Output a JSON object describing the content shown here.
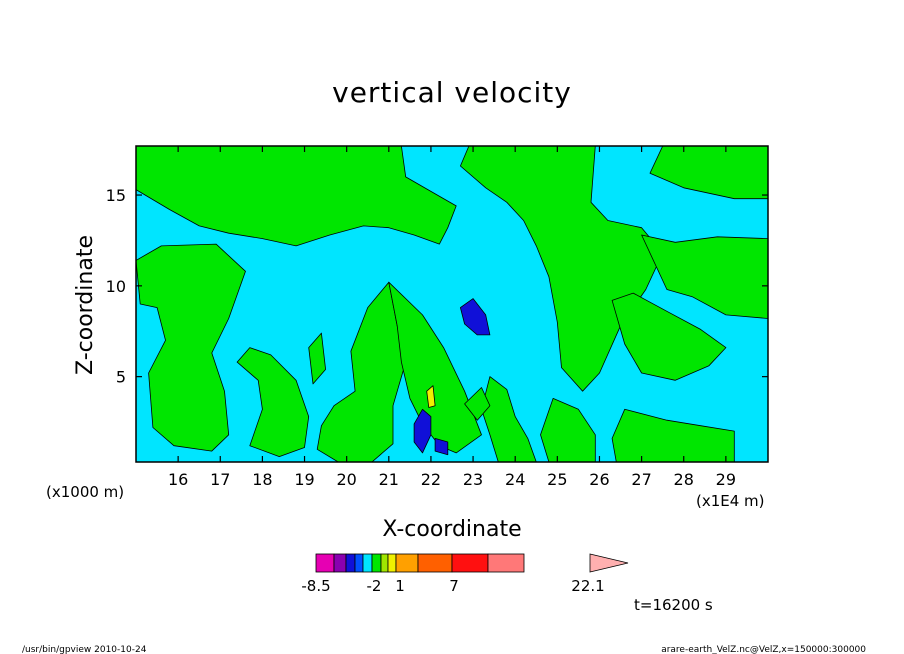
{
  "chart_data": {
    "type": "heatmap",
    "title": "vertical velocity",
    "xlabel": "X-coordinate",
    "ylabel": "Z-coordinate",
    "x_scale_note": "(x1E4 m)",
    "y_scale_note": "(x1000 m)",
    "xlim": [
      15.0,
      30.0
    ],
    "ylim": [
      0.3,
      17.7
    ],
    "x_ticks": [
      "16",
      "17",
      "18",
      "19",
      "20",
      "21",
      "22",
      "23",
      "24",
      "25",
      "26",
      "27",
      "28",
      "29"
    ],
    "y_ticks": [
      "5",
      "10",
      "15"
    ],
    "x_tick_values": [
      16,
      17,
      18,
      19,
      20,
      21,
      22,
      23,
      24,
      25,
      26,
      27,
      28,
      29
    ],
    "y_tick_values": [
      5,
      10,
      15
    ],
    "background_color": "#00e5ff",
    "contour_levels": [
      {
        "min": -8.5,
        "color": "#e600b3"
      },
      {
        "min": -7,
        "color": "#8a00b0"
      },
      {
        "min": -5.5,
        "color": "#1010d8"
      },
      {
        "min": -4,
        "color": "#0050ff"
      },
      {
        "min": -2,
        "color": "#00e5ff"
      },
      {
        "min": 1,
        "color": "#00e600"
      },
      {
        "min": 2,
        "color": "#a0e600"
      },
      {
        "min": 3,
        "color": "#f0f000"
      },
      {
        "min": 4,
        "color": "#ffa000"
      },
      {
        "min": 7,
        "color": "#ff6000"
      },
      {
        "min": 10,
        "color": "#ff1010"
      },
      {
        "min": 14,
        "color": "#ff7878"
      },
      {
        "min": 22.1,
        "color": "#ffb0b0"
      }
    ],
    "regions": [
      {
        "level": "positive",
        "color": "#00e600",
        "points": [
          [
            15,
            15.3
          ],
          [
            15.8,
            14.2
          ],
          [
            16.5,
            13.3
          ],
          [
            17.2,
            12.9
          ],
          [
            18,
            12.6
          ],
          [
            18.8,
            12.2
          ],
          [
            19.6,
            12.8
          ],
          [
            20.4,
            13.3
          ],
          [
            21,
            13.2
          ],
          [
            21.6,
            12.8
          ],
          [
            22.2,
            12.3
          ],
          [
            22.4,
            13.2
          ],
          [
            22.6,
            14.4
          ],
          [
            22.0,
            15.2
          ],
          [
            21.4,
            16.0
          ],
          [
            21.3,
            17.7
          ],
          [
            15,
            17.7
          ]
        ]
      },
      {
        "level": "positive",
        "color": "#00e600",
        "points": [
          [
            22.9,
            17.7
          ],
          [
            22.7,
            16.6
          ],
          [
            23.3,
            15.4
          ],
          [
            23.8,
            14.6
          ],
          [
            24.2,
            13.6
          ],
          [
            24.5,
            12.2
          ],
          [
            24.8,
            10.5
          ],
          [
            25.0,
            8.0
          ],
          [
            25.1,
            5.5
          ],
          [
            25.6,
            4.2
          ],
          [
            26.0,
            5.2
          ],
          [
            26.5,
            7.8
          ],
          [
            27.1,
            9.8
          ],
          [
            27.5,
            11.8
          ],
          [
            27.0,
            13.2
          ],
          [
            26.2,
            13.6
          ],
          [
            25.8,
            14.6
          ],
          [
            25.9,
            17.7
          ]
        ]
      },
      {
        "level": "positive",
        "color": "#00e600",
        "points": [
          [
            27.5,
            17.7
          ],
          [
            27.2,
            16.2
          ],
          [
            28.0,
            15.4
          ],
          [
            29.2,
            14.8
          ],
          [
            30,
            14.8
          ],
          [
            30,
            17.7
          ]
        ]
      },
      {
        "level": "positive",
        "color": "#00e600",
        "points": [
          [
            27.0,
            12.8
          ],
          [
            27.8,
            12.4
          ],
          [
            28.8,
            12.7
          ],
          [
            30,
            12.6
          ],
          [
            30,
            8.2
          ],
          [
            29.0,
            8.4
          ],
          [
            28.2,
            9.4
          ],
          [
            27.6,
            9.8
          ]
        ]
      },
      {
        "level": "positive",
        "color": "#00e600",
        "points": [
          [
            15.1,
            9.0
          ],
          [
            15.5,
            8.8
          ],
          [
            15.7,
            7.0
          ],
          [
            15.3,
            5.2
          ],
          [
            15.4,
            2.2
          ],
          [
            15.9,
            1.2
          ],
          [
            16.8,
            0.9
          ],
          [
            17.2,
            1.8
          ],
          [
            17.1,
            4.2
          ],
          [
            16.8,
            6.3
          ],
          [
            17.2,
            8.2
          ],
          [
            17.6,
            10.8
          ],
          [
            16.9,
            12.3
          ],
          [
            15.6,
            12.2
          ],
          [
            15.0,
            11.4
          ]
        ]
      },
      {
        "level": "positive",
        "color": "#00e600",
        "points": [
          [
            17.4,
            5.8
          ],
          [
            17.9,
            4.8
          ],
          [
            18.0,
            3.2
          ],
          [
            17.7,
            1.2
          ],
          [
            18.4,
            0.6
          ],
          [
            19.0,
            1.1
          ],
          [
            19.1,
            2.8
          ],
          [
            18.8,
            4.8
          ],
          [
            18.2,
            6.2
          ],
          [
            17.7,
            6.6
          ]
        ]
      },
      {
        "level": "positive",
        "color": "#00e600",
        "points": [
          [
            19.7,
            3.4
          ],
          [
            20.2,
            4.2
          ],
          [
            20.1,
            6.4
          ],
          [
            20.5,
            8.8
          ],
          [
            21.0,
            10.2
          ],
          [
            21.2,
            7.8
          ],
          [
            21.4,
            5.8
          ],
          [
            21.1,
            3.4
          ],
          [
            21.1,
            1.3
          ],
          [
            20.6,
            0.3
          ],
          [
            19.8,
            0.3
          ],
          [
            19.3,
            1.0
          ],
          [
            19.4,
            2.3
          ]
        ]
      },
      {
        "level": "positive",
        "color": "#00e600",
        "points": [
          [
            21.0,
            10.2
          ],
          [
            21.8,
            8.4
          ],
          [
            22.3,
            6.6
          ],
          [
            22.8,
            4.2
          ],
          [
            23.2,
            1.8
          ],
          [
            22.6,
            0.8
          ],
          [
            22.2,
            1.2
          ],
          [
            21.8,
            2.4
          ],
          [
            21.5,
            3.8
          ],
          [
            21.3,
            5.8
          ],
          [
            21.2,
            7.8
          ]
        ]
      },
      {
        "level": "positive",
        "color": "#00e600",
        "points": [
          [
            23.4,
            5.0
          ],
          [
            23.8,
            4.3
          ],
          [
            24.0,
            2.8
          ],
          [
            24.3,
            1.6
          ],
          [
            24.5,
            0.3
          ],
          [
            23.6,
            0.3
          ],
          [
            23.4,
            1.8
          ],
          [
            23.2,
            3.2
          ]
        ]
      },
      {
        "level": "positive",
        "color": "#00e600",
        "points": [
          [
            24.9,
            3.8
          ],
          [
            25.5,
            3.2
          ],
          [
            25.9,
            1.8
          ],
          [
            25.9,
            0.3
          ],
          [
            24.8,
            0.3
          ],
          [
            24.6,
            1.8
          ]
        ]
      },
      {
        "level": "positive",
        "color": "#00e600",
        "points": [
          [
            26.6,
            3.2
          ],
          [
            27.6,
            2.6
          ],
          [
            28.4,
            2.3
          ],
          [
            29.2,
            2.0
          ],
          [
            29.2,
            0.3
          ],
          [
            26.4,
            0.3
          ],
          [
            26.3,
            1.6
          ]
        ]
      },
      {
        "level": "positive",
        "color": "#00e600",
        "points": [
          [
            26.3,
            9.2
          ],
          [
            26.6,
            6.8
          ],
          [
            27.0,
            5.2
          ],
          [
            27.8,
            4.8
          ],
          [
            28.6,
            5.6
          ],
          [
            29.0,
            6.6
          ],
          [
            28.4,
            7.6
          ],
          [
            27.6,
            8.6
          ],
          [
            26.8,
            9.6
          ]
        ]
      },
      {
        "level": "positive",
        "color": "#00e600",
        "points": [
          [
            19.1,
            6.6
          ],
          [
            19.4,
            7.4
          ],
          [
            19.5,
            5.4
          ],
          [
            19.2,
            4.6
          ]
        ]
      },
      {
        "level": "positive",
        "color": "#00e600",
        "points": [
          [
            22.8,
            3.5
          ],
          [
            23.2,
            4.4
          ],
          [
            23.4,
            3.4
          ],
          [
            23.1,
            2.6
          ]
        ]
      },
      {
        "level": "negative",
        "color": "#1010d8",
        "points": [
          [
            22.7,
            8.8
          ],
          [
            23.0,
            9.3
          ],
          [
            23.3,
            8.4
          ],
          [
            23.4,
            7.3
          ],
          [
            23.1,
            7.3
          ],
          [
            22.8,
            7.9
          ]
        ]
      },
      {
        "level": "negative",
        "color": "#1010d8",
        "points": [
          [
            21.8,
            3.2
          ],
          [
            22.0,
            2.8
          ],
          [
            22.0,
            1.8
          ],
          [
            21.8,
            0.8
          ],
          [
            21.6,
            1.4
          ],
          [
            21.6,
            2.4
          ]
        ]
      },
      {
        "level": "negative",
        "color": "#1010d8",
        "points": [
          [
            22.1,
            1.6
          ],
          [
            22.4,
            1.4
          ],
          [
            22.4,
            0.7
          ],
          [
            22.1,
            0.9
          ]
        ]
      },
      {
        "level": "small-positive",
        "color": "#f0f000",
        "points": [
          [
            21.9,
            4.2
          ],
          [
            22.05,
            4.5
          ],
          [
            22.1,
            3.4
          ],
          [
            21.95,
            3.3
          ]
        ]
      }
    ]
  },
  "colorbar": {
    "labels": [
      "-8.5",
      "-2",
      "1",
      "7",
      "22.1"
    ],
    "label_values": [
      -8.5,
      -2,
      1,
      7,
      22.1
    ]
  },
  "time_label": "t=16200 s",
  "footer": {
    "left": "/usr/bin/gpview   2010-10-24",
    "right": "arare-earth_VelZ.nc@VelZ,x=150000:300000"
  }
}
